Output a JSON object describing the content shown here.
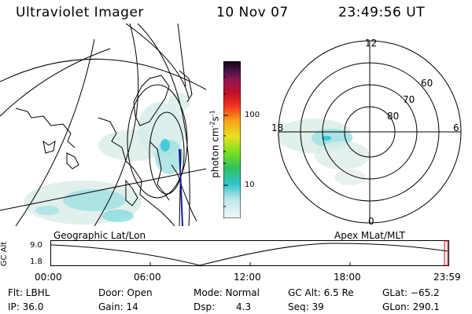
{
  "header": {
    "instrument": "Ultraviolet Imager",
    "date": "10 Nov 07",
    "time": "23:49:56 UT"
  },
  "colorbar": {
    "unit_label": "photon cm",
    "unit_exp1": "-2",
    "unit_mid": "s",
    "unit_exp2": "-1",
    "ticks": [
      "100",
      "10"
    ]
  },
  "polar": {
    "mlt_labels": {
      "top": "12",
      "left": "18",
      "right": "6",
      "bottom": "0"
    },
    "lat_labels": [
      "60",
      "70",
      "80"
    ]
  },
  "panel_labels": {
    "geographic": "Geographic Lat/Lon",
    "apex": "Apex MLat/MLT"
  },
  "altitude_plot": {
    "ylabel": "GC Alt",
    "y_ticks": [
      "9.0",
      "1.8"
    ],
    "x_ticks": [
      "00:00",
      "06:00",
      "12:00",
      "18:00",
      "23:59"
    ]
  },
  "status": {
    "filter": "Flt: LBHL",
    "door": "Door: Open",
    "mode": "Mode: Normal",
    "gc_alt": "GC Alt: 6.5 Re",
    "glat": "GLat: −65.2",
    "ip": "IP: 36.0",
    "gain": "Gain: 14",
    "dsp_label": "Dsp:",
    "dsp_value": "4.3",
    "seq": "Seq: 39",
    "glon": "GLon: 290.1"
  },
  "colors": {
    "aurora_light": "#cfe8e6",
    "aurora_mid": "#7ad9dc",
    "aurora_bright": "#39c6d6",
    "track": "#1a1a9a",
    "marker": "#d00000"
  }
}
